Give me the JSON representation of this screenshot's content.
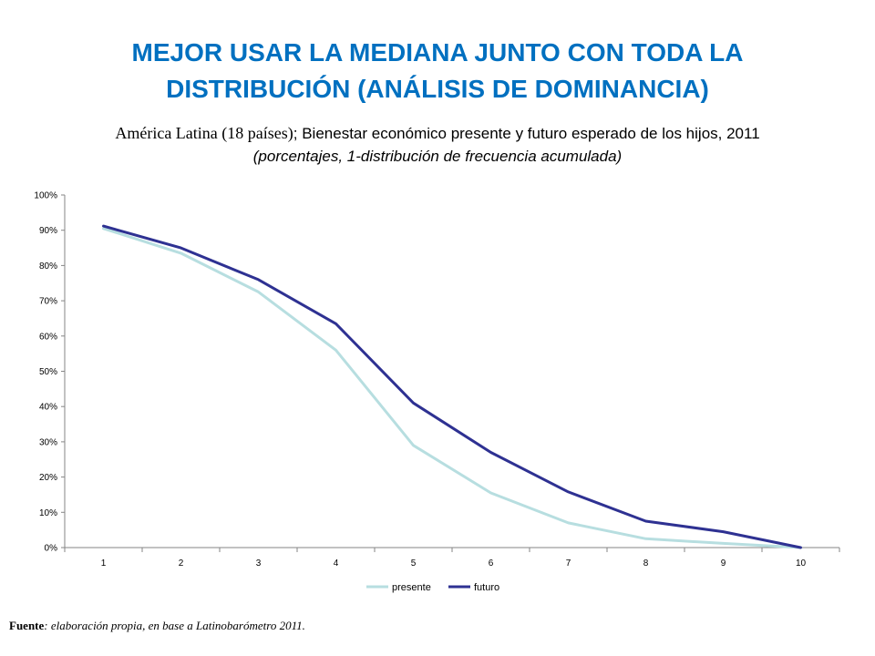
{
  "slide": {
    "title": "MEJOR USAR LA MEDIANA JUNTO CON TODA LA DISTRIBUCIÓN (ANÁLISIS DE DOMINANCIA)",
    "subtitle_part1": "América Latina (18 países)",
    "subtitle_part2": "; Bienestar económico presente y futuro esperado de los hijos, 2011",
    "subtitle_line2": "(porcentajes,  1-distribución de frecuencia acumulada)",
    "source_label": "Fuente",
    "source_text": ": elaboración propia, en base a  Latinobarómetro 2011."
  },
  "colors": {
    "title": "#0070c0",
    "presente": "#b7dee0",
    "futuro": "#2e3192",
    "axis": "#868686"
  },
  "chart_data": {
    "type": "line",
    "title": "",
    "xlabel": "",
    "ylabel": "",
    "categories": [
      "1",
      "2",
      "3",
      "4",
      "5",
      "6",
      "7",
      "8",
      "9",
      "10"
    ],
    "y_ticks": [
      "0%",
      "10%",
      "20%",
      "30%",
      "40%",
      "50%",
      "60%",
      "70%",
      "80%",
      "90%",
      "100%"
    ],
    "ylim": [
      0,
      100
    ],
    "grid": false,
    "legend_position": "bottom",
    "series": [
      {
        "name": "presente",
        "values": [
          90.5,
          83.5,
          72.5,
          56.0,
          29.0,
          15.5,
          7.0,
          2.5,
          1.2,
          0
        ]
      },
      {
        "name": "futuro",
        "values": [
          91.2,
          85.0,
          76.0,
          63.5,
          41.0,
          27.0,
          15.8,
          7.5,
          4.5,
          0
        ]
      }
    ]
  }
}
